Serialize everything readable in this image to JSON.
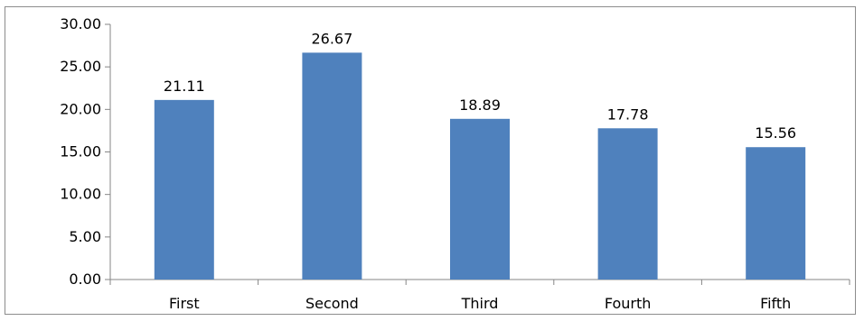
{
  "chart_data": {
    "type": "bar",
    "title": "",
    "xlabel": "",
    "ylabel": "",
    "categories": [
      "First",
      "Second",
      "Third",
      "Fourth",
      "Fifth"
    ],
    "values": [
      21.11,
      26.67,
      18.89,
      17.78,
      15.56
    ],
    "data_labels": [
      "21.11",
      "26.67",
      "18.89",
      "17.78",
      "15.56"
    ],
    "ylim": [
      0,
      30
    ],
    "y_ticks": [
      0,
      5,
      10,
      15,
      20,
      25,
      30
    ],
    "y_tick_labels": [
      "0.00",
      "5.00",
      "10.00",
      "15.00",
      "20.00",
      "25.00",
      "30.00"
    ],
    "grid": false,
    "legend": "none",
    "colors": {
      "bar": "#4f81bd",
      "axis": "#868686",
      "frame": "#8c8c8c"
    }
  }
}
